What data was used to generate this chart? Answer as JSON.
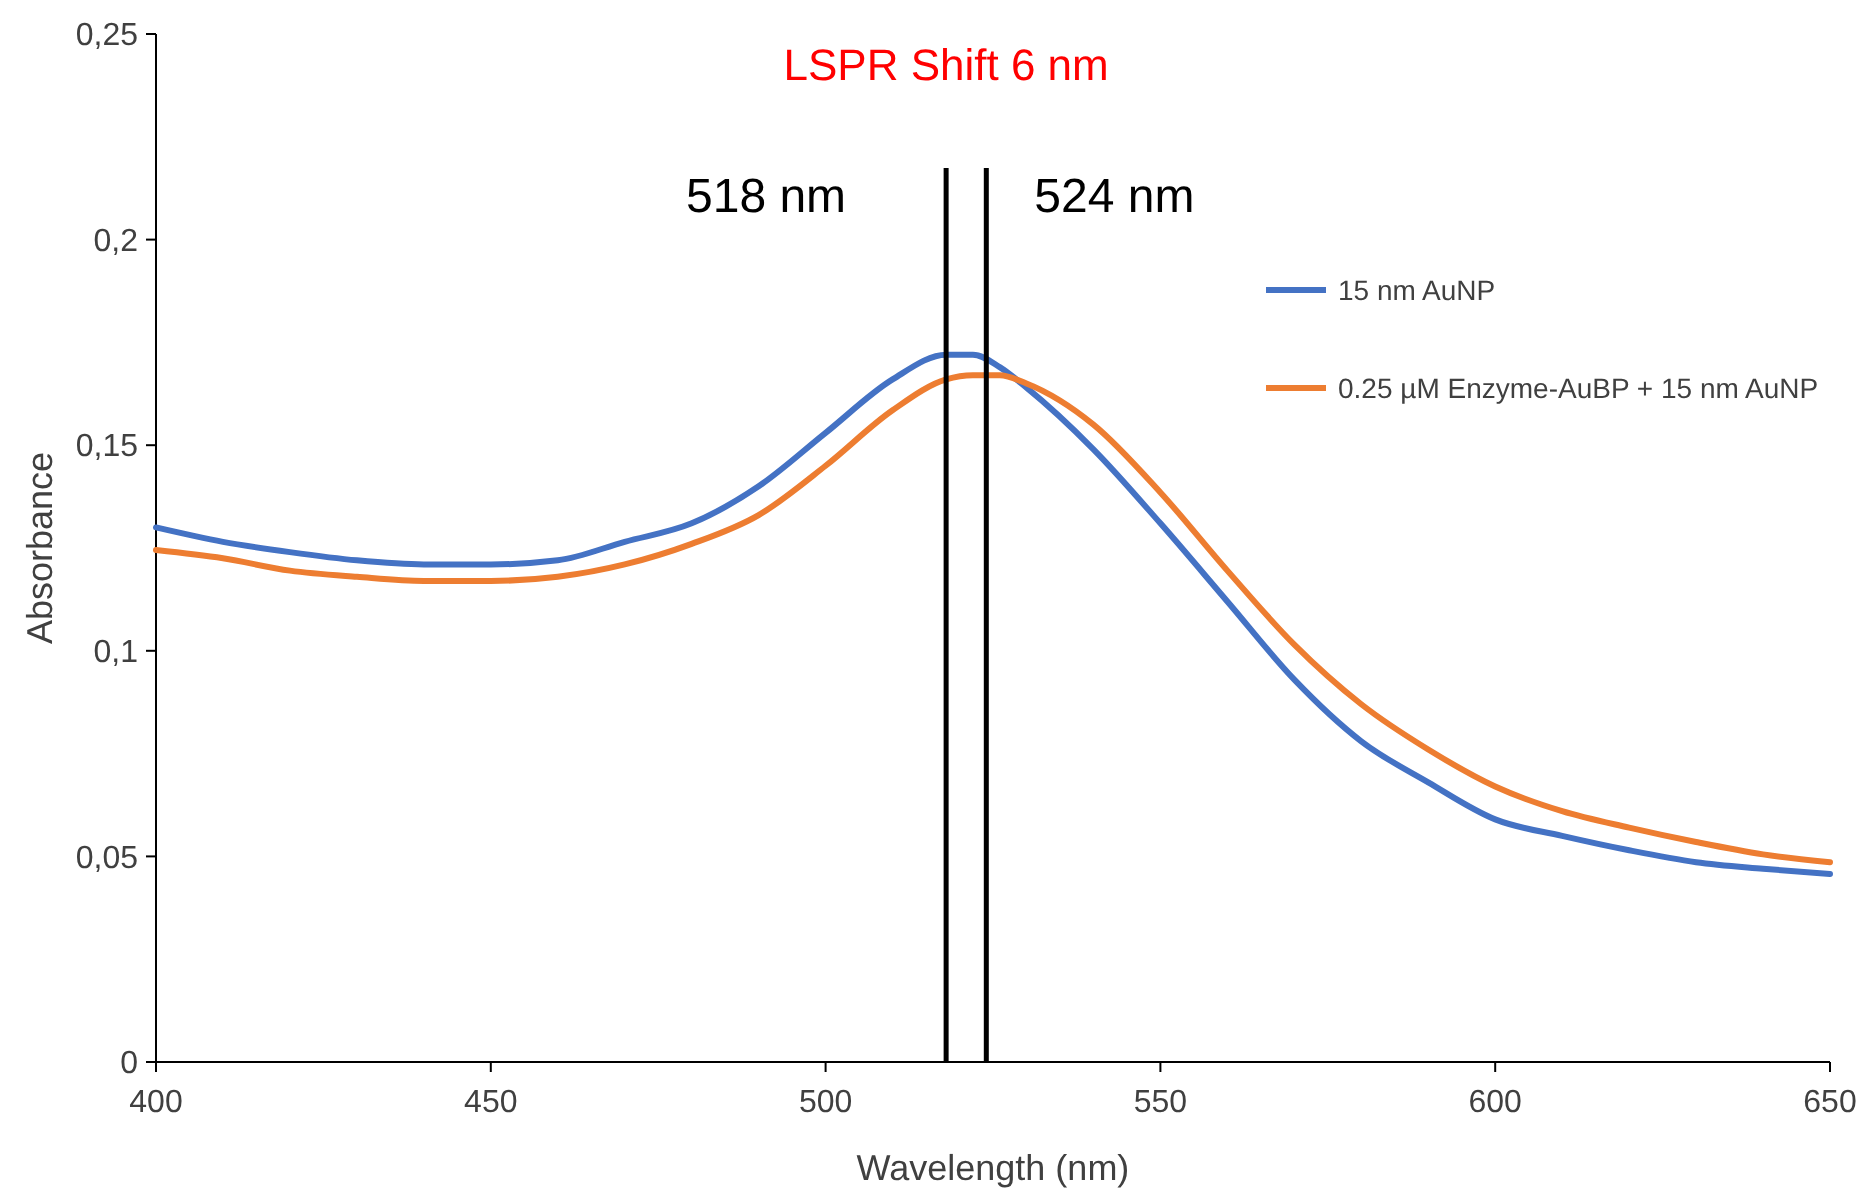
{
  "chart_data": {
    "type": "line",
    "title": "LSPR Shift 6 nm",
    "xlabel": "Wavelength (nm)",
    "ylabel": "Absorbance",
    "xlim": [
      400,
      650
    ],
    "xticks": [
      400,
      450,
      500,
      550,
      600,
      650
    ],
    "ylim": [
      0,
      0.25
    ],
    "yticks": [
      0,
      {
        "value": 0.05,
        "label": "0,05"
      },
      {
        "value": 0.1,
        "label": "0,1"
      },
      {
        "value": 0.15,
        "label": "0,15"
      },
      {
        "value": 0.2,
        "label": "0,2"
      },
      {
        "value": 0.25,
        "label": "0,25"
      }
    ],
    "x": [
      400,
      410,
      420,
      430,
      440,
      450,
      460,
      470,
      480,
      490,
      500,
      510,
      518,
      522,
      526,
      530,
      540,
      550,
      560,
      570,
      580,
      590,
      600,
      610,
      620,
      630,
      640,
      650
    ],
    "series": [
      {
        "name": "15 nm AuNP",
        "color": "#4472c4",
        "values": [
          0.13,
          0.1265,
          0.124,
          0.122,
          0.121,
          0.121,
          0.122,
          0.1265,
          0.131,
          0.14,
          0.153,
          0.166,
          0.172,
          0.172,
          0.169,
          0.164,
          0.149,
          0.131,
          0.112,
          0.093,
          0.078,
          0.068,
          0.059,
          0.055,
          0.0515,
          0.0486,
          0.047,
          0.0457
        ]
      },
      {
        "name": "0.25 µM  Enzyme-AuBP + 15 nm AuNP",
        "color": "#ed7d31",
        "values": [
          0.1245,
          0.1225,
          0.1195,
          0.118,
          0.117,
          0.117,
          0.118,
          0.121,
          0.126,
          0.133,
          0.145,
          0.1585,
          0.166,
          0.167,
          0.167,
          0.165,
          0.155,
          0.1385,
          0.1195,
          0.1015,
          0.087,
          0.076,
          0.067,
          0.061,
          0.057,
          0.0535,
          0.0505,
          0.0486
        ]
      }
    ],
    "ref_lines": [
      {
        "axis": "x",
        "value": 518,
        "label": "518 nm",
        "color": "#000000"
      },
      {
        "axis": "x",
        "value": 524,
        "label": "524 nm",
        "color": "#000000"
      }
    ],
    "grid": false,
    "legend": "right",
    "marker": "none",
    "line_style": "solid"
  }
}
